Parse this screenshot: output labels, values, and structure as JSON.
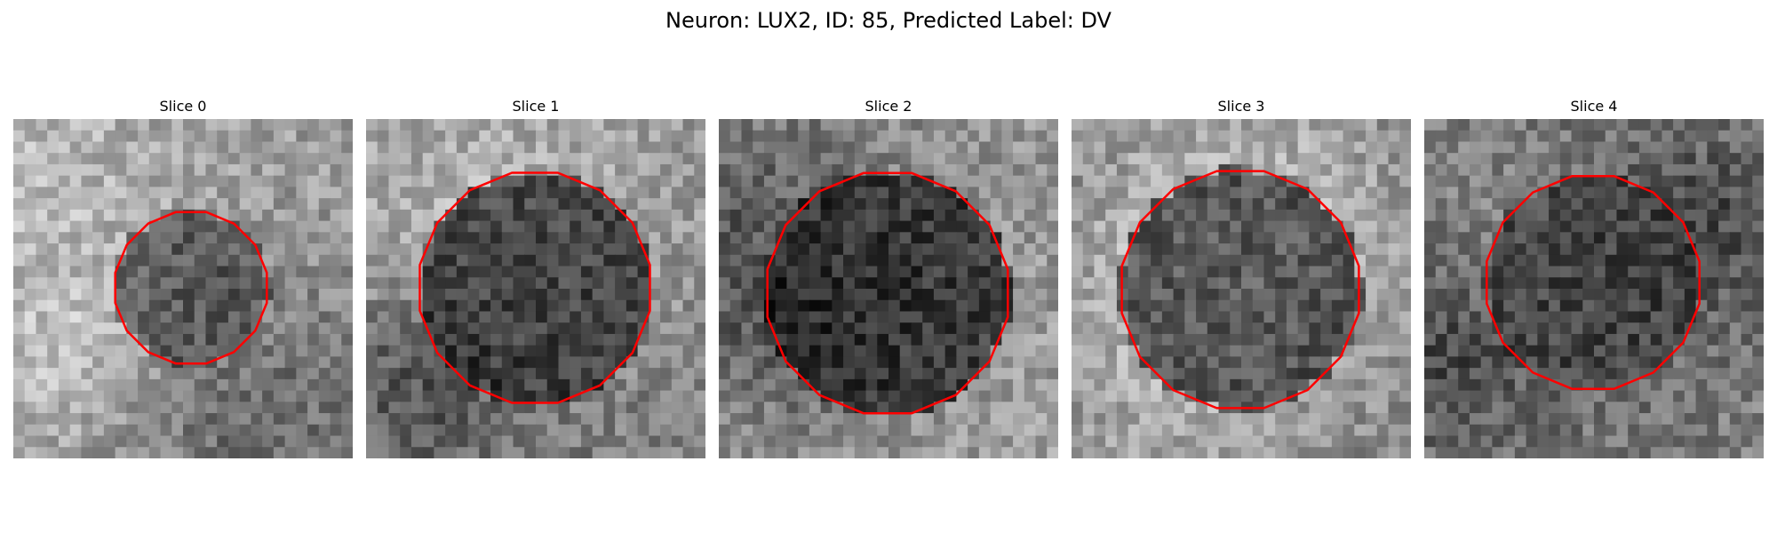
{
  "figure": {
    "title": "Neuron: LUX2, ID: 85, Predicted Label: DV"
  },
  "outline_color": "#ff0000",
  "panels": [
    {
      "title": "Slice 0"
    },
    {
      "title": "Slice 1"
    },
    {
      "title": "Slice 2"
    },
    {
      "title": "Slice 3"
    },
    {
      "title": "Slice 4"
    }
  ]
}
